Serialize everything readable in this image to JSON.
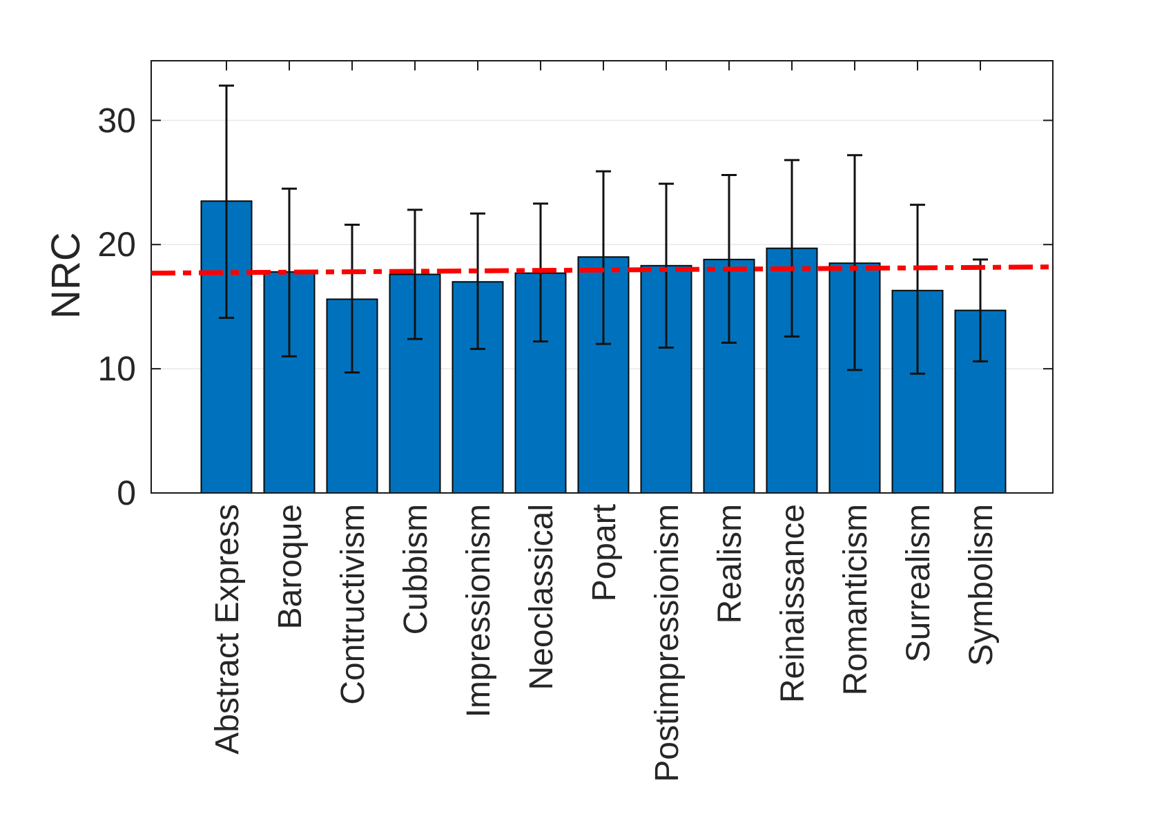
{
  "figure": {
    "background": "#ffffff",
    "colors": {
      "bar_fill": "#0072BD",
      "bar_edge": "#0a0a0a",
      "error_bar": "#111111",
      "trend_line": "#ff0000",
      "grid": "#e8e8e8",
      "axis": "#1a1a1a",
      "text": "#262626"
    }
  },
  "chart_data": {
    "type": "bar",
    "title": "",
    "xlabel": "",
    "ylabel": "NRC",
    "categories": [
      "Abstract Express",
      "Baroque",
      "Contructivism",
      "Cubbism",
      "Impressionism",
      "Neoclassical",
      "Popart",
      "Postimpressionism",
      "Realism",
      "Reinaissance",
      "Romanticism",
      "Surrealism",
      "Symbolism"
    ],
    "values": [
      23.5,
      17.8,
      15.6,
      17.6,
      17.0,
      17.7,
      19.0,
      18.3,
      18.8,
      19.7,
      18.5,
      16.3,
      14.7
    ],
    "error_low": [
      14.1,
      11.0,
      9.7,
      12.4,
      11.6,
      12.2,
      12.0,
      11.7,
      12.1,
      12.6,
      9.9,
      9.6,
      10.6
    ],
    "error_high": [
      32.8,
      24.5,
      21.6,
      22.8,
      22.5,
      23.3,
      25.9,
      24.9,
      25.6,
      26.8,
      27.2,
      23.2,
      18.8
    ],
    "yticks": [
      0,
      10,
      20,
      30
    ],
    "ylim": [
      0,
      34.8
    ],
    "grid": "horizontal-only",
    "legend": "none",
    "trend_line": {
      "style": "dash-dot",
      "color": "#ff0000",
      "start_value": 17.7,
      "end_value": 18.2
    }
  }
}
